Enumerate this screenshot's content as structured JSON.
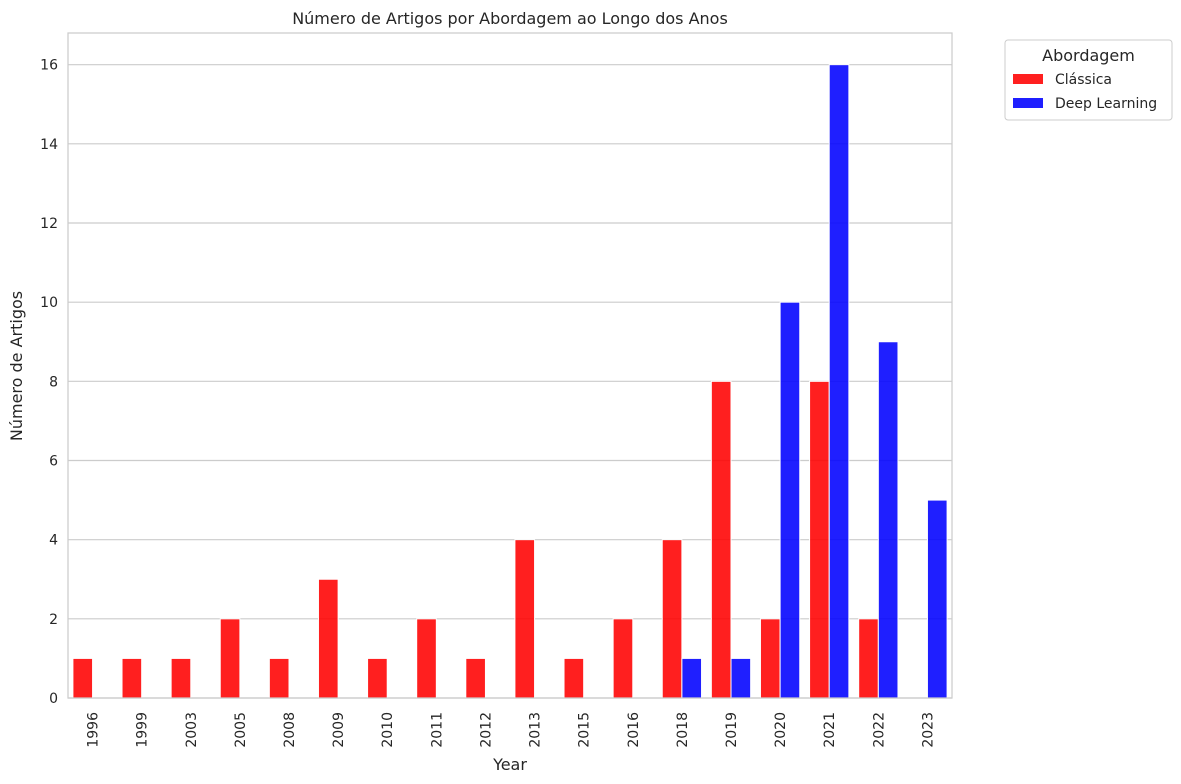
{
  "chart_data": {
    "type": "bar",
    "title": "Número de Artigos por Abordagem ao Longo dos Anos",
    "xlabel": "Year",
    "ylabel": "Número de Artigos",
    "categories": [
      "1996",
      "1999",
      "2003",
      "2005",
      "2008",
      "2009",
      "2010",
      "2011",
      "2012",
      "2013",
      "2015",
      "2016",
      "2018",
      "2019",
      "2020",
      "2021",
      "2022",
      "2023"
    ],
    "series": [
      {
        "name": "Clássica",
        "color": "#ff0000",
        "values": [
          1,
          1,
          1,
          2,
          1,
          3,
          1,
          2,
          1,
          4,
          1,
          2,
          4,
          8,
          2,
          8,
          2,
          0
        ]
      },
      {
        "name": "Deep Learning",
        "color": "#0000ff",
        "values": [
          0,
          0,
          0,
          0,
          0,
          0,
          0,
          0,
          0,
          0,
          0,
          0,
          1,
          1,
          10,
          16,
          9,
          5
        ]
      }
    ],
    "ylim": [
      0,
      16.8
    ],
    "yticks": [
      0,
      2,
      4,
      6,
      8,
      10,
      12,
      14,
      16
    ],
    "grid": "horizontal",
    "legend": {
      "title": "Abordagem",
      "placement": "outside-top-right"
    }
  }
}
